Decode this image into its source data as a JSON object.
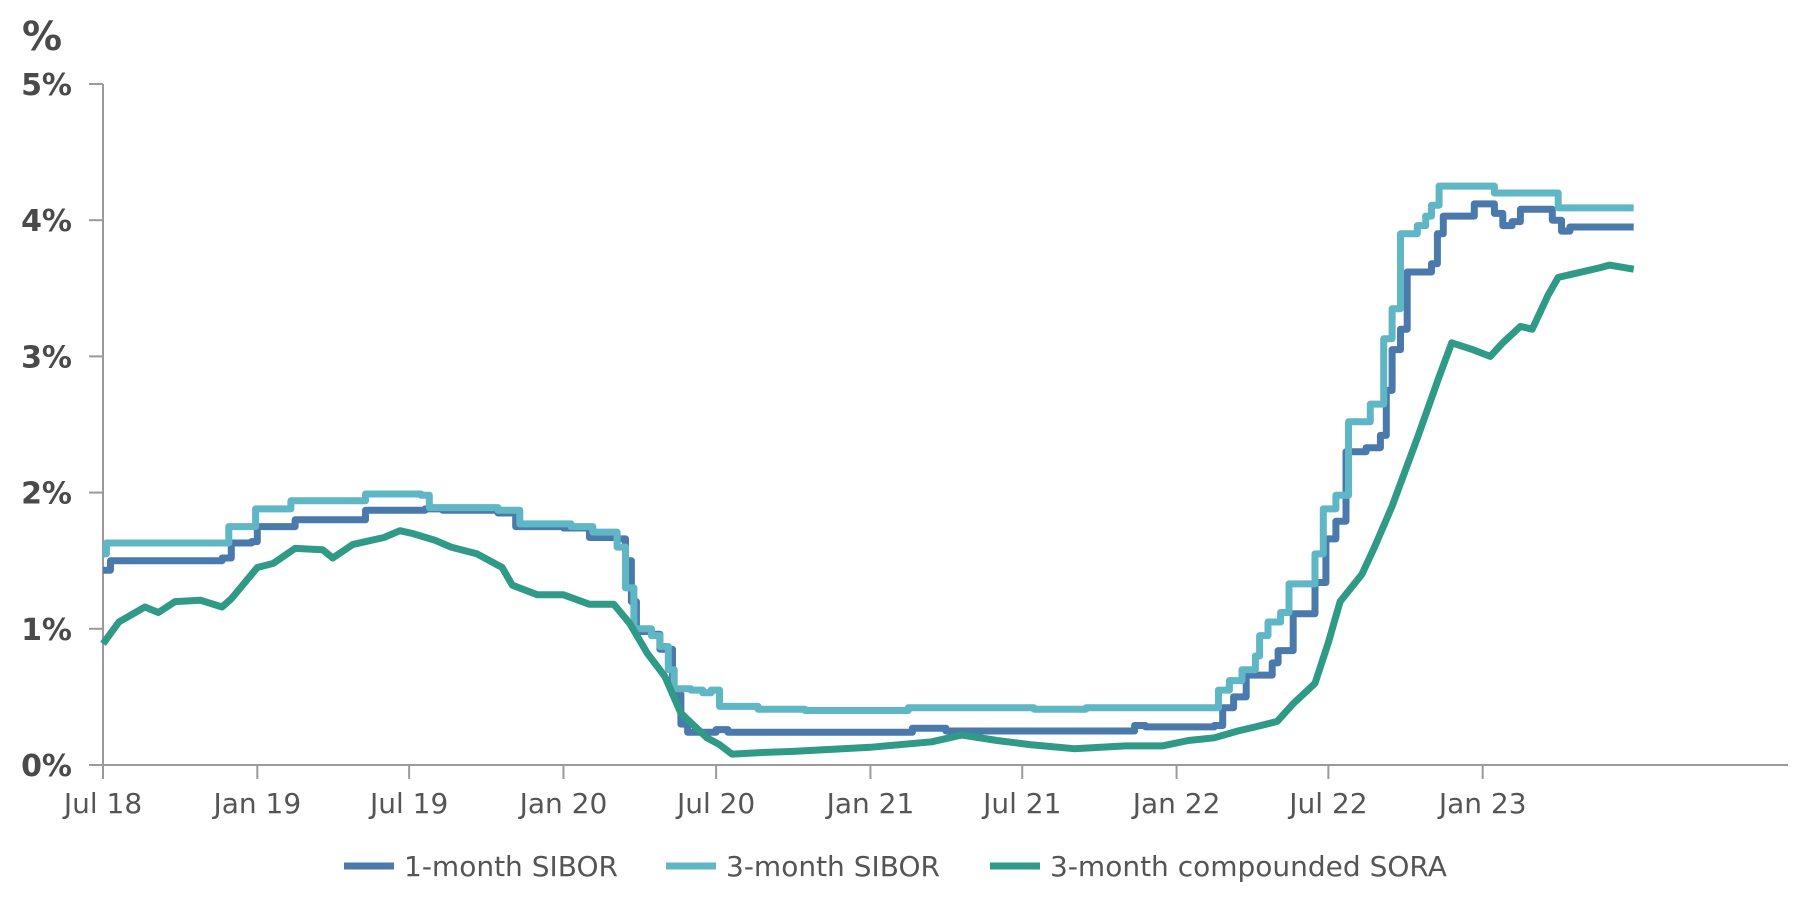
{
  "chart_data": {
    "type": "line",
    "title": "",
    "unit_label": "%",
    "xlabel": "",
    "ylabel": "",
    "ylim": [
      0,
      5
    ],
    "yticks": [
      {
        "value": 0,
        "label": "0%"
      },
      {
        "value": 1,
        "label": "1%"
      },
      {
        "value": 2,
        "label": "2%"
      },
      {
        "value": 3,
        "label": "3%"
      },
      {
        "value": 4,
        "label": "4%"
      },
      {
        "value": 5,
        "label": "5%"
      }
    ],
    "xlim": [
      "2018-07-01",
      "2023-12-31"
    ],
    "xticks": [
      {
        "date": "2018-07-01",
        "label": "Jul 18"
      },
      {
        "date": "2019-01-01",
        "label": "Jan 19"
      },
      {
        "date": "2019-07-01",
        "label": "Jul 19"
      },
      {
        "date": "2020-01-01",
        "label": "Jan 20"
      },
      {
        "date": "2020-07-01",
        "label": "Jul 20"
      },
      {
        "date": "2021-01-01",
        "label": "Jan 21"
      },
      {
        "date": "2021-07-01",
        "label": "Jul 21"
      },
      {
        "date": "2022-01-01",
        "label": "Jan 22"
      },
      {
        "date": "2022-07-01",
        "label": "Jul 22"
      },
      {
        "date": "2023-01-01",
        "label": "Jan 23"
      }
    ],
    "grid": false,
    "legend_position": "bottom",
    "series": [
      {
        "name": "1-month SIBOR",
        "color": "#4a7aac",
        "step": true,
        "points": [
          [
            "2018-07-01",
            1.43
          ],
          [
            "2018-07-10",
            1.5
          ],
          [
            "2018-11-20",
            1.52
          ],
          [
            "2018-12-01",
            1.63
          ],
          [
            "2018-12-25",
            1.64
          ],
          [
            "2019-01-01",
            1.75
          ],
          [
            "2019-02-15",
            1.8
          ],
          [
            "2019-05-10",
            1.87
          ],
          [
            "2019-07-20",
            1.88
          ],
          [
            "2019-08-10",
            1.87
          ],
          [
            "2019-10-15",
            1.85
          ],
          [
            "2019-11-05",
            1.75
          ],
          [
            "2020-01-01",
            1.74
          ],
          [
            "2020-02-01",
            1.67
          ],
          [
            "2020-03-05",
            1.66
          ],
          [
            "2020-03-15",
            1.5
          ],
          [
            "2020-03-22",
            1.2
          ],
          [
            "2020-03-28",
            0.98
          ],
          [
            "2020-04-15",
            0.96
          ],
          [
            "2020-04-25",
            0.85
          ],
          [
            "2020-05-10",
            0.52
          ],
          [
            "2020-05-20",
            0.3
          ],
          [
            "2020-05-28",
            0.24
          ],
          [
            "2020-06-20",
            0.24
          ],
          [
            "2020-07-01",
            0.26
          ],
          [
            "2020-07-15",
            0.24
          ],
          [
            "2021-02-10",
            0.24
          ],
          [
            "2021-02-20",
            0.27
          ],
          [
            "2021-04-01",
            0.25
          ],
          [
            "2021-11-05",
            0.25
          ],
          [
            "2021-11-12",
            0.29
          ],
          [
            "2021-11-25",
            0.28
          ],
          [
            "2022-02-15",
            0.29
          ],
          [
            "2022-02-25",
            0.42
          ],
          [
            "2022-03-10",
            0.5
          ],
          [
            "2022-03-25",
            0.66
          ],
          [
            "2022-04-25",
            0.75
          ],
          [
            "2022-05-02",
            0.84
          ],
          [
            "2022-05-20",
            1.11
          ],
          [
            "2022-06-15",
            1.34
          ],
          [
            "2022-06-28",
            1.66
          ],
          [
            "2022-07-10",
            1.79
          ],
          [
            "2022-07-22",
            2.3
          ],
          [
            "2022-08-15",
            2.33
          ],
          [
            "2022-09-01",
            2.42
          ],
          [
            "2022-09-08",
            2.75
          ],
          [
            "2022-09-15",
            3.05
          ],
          [
            "2022-09-25",
            3.2
          ],
          [
            "2022-10-03",
            3.62
          ],
          [
            "2022-11-01",
            3.68
          ],
          [
            "2022-11-08",
            3.9
          ],
          [
            "2022-11-15",
            4.03
          ],
          [
            "2022-12-22",
            4.12
          ],
          [
            "2023-01-15",
            4.05
          ],
          [
            "2023-01-25",
            3.96
          ],
          [
            "2023-02-05",
            3.99
          ],
          [
            "2023-02-15",
            4.08
          ],
          [
            "2023-03-25",
            4.0
          ],
          [
            "2023-04-05",
            3.92
          ],
          [
            "2023-04-15",
            3.95
          ],
          [
            "2023-06-30",
            3.95
          ]
        ]
      },
      {
        "name": "3-month SIBOR",
        "color": "#5fb6c4",
        "step": true,
        "points": [
          [
            "2018-07-01",
            1.55
          ],
          [
            "2018-07-05",
            1.63
          ],
          [
            "2018-11-20",
            1.63
          ],
          [
            "2018-11-28",
            1.75
          ],
          [
            "2018-12-30",
            1.88
          ],
          [
            "2019-02-10",
            1.94
          ],
          [
            "2019-05-10",
            1.99
          ],
          [
            "2019-07-15",
            1.98
          ],
          [
            "2019-07-25",
            1.89
          ],
          [
            "2019-10-15",
            1.87
          ],
          [
            "2019-11-10",
            1.77
          ],
          [
            "2020-01-10",
            1.75
          ],
          [
            "2020-02-05",
            1.71
          ],
          [
            "2020-03-05",
            1.6
          ],
          [
            "2020-03-15",
            1.3
          ],
          [
            "2020-03-25",
            1.0
          ],
          [
            "2020-04-15",
            0.95
          ],
          [
            "2020-04-25",
            0.87
          ],
          [
            "2020-05-05",
            0.7
          ],
          [
            "2020-05-12",
            0.56
          ],
          [
            "2020-06-01",
            0.55
          ],
          [
            "2020-06-15",
            0.53
          ],
          [
            "2020-06-25",
            0.55
          ],
          [
            "2020-07-05",
            0.43
          ],
          [
            "2020-08-20",
            0.41
          ],
          [
            "2020-10-15",
            0.4
          ],
          [
            "2021-02-15",
            0.42
          ],
          [
            "2021-06-01",
            0.42
          ],
          [
            "2021-07-15",
            0.41
          ],
          [
            "2021-09-15",
            0.42
          ],
          [
            "2022-02-15",
            0.42
          ],
          [
            "2022-02-20",
            0.55
          ],
          [
            "2022-03-05",
            0.62
          ],
          [
            "2022-03-20",
            0.7
          ],
          [
            "2022-04-05",
            0.8
          ],
          [
            "2022-04-10",
            0.95
          ],
          [
            "2022-04-20",
            1.05
          ],
          [
            "2022-05-05",
            1.12
          ],
          [
            "2022-05-15",
            1.33
          ],
          [
            "2022-06-15",
            1.55
          ],
          [
            "2022-06-25",
            1.88
          ],
          [
            "2022-07-10",
            1.98
          ],
          [
            "2022-07-25",
            2.52
          ],
          [
            "2022-08-20",
            2.65
          ],
          [
            "2022-09-05",
            3.13
          ],
          [
            "2022-09-15",
            3.35
          ],
          [
            "2022-09-25",
            3.9
          ],
          [
            "2022-10-15",
            3.96
          ],
          [
            "2022-10-25",
            4.03
          ],
          [
            "2022-11-01",
            4.11
          ],
          [
            "2022-11-10",
            4.25
          ],
          [
            "2023-01-15",
            4.2
          ],
          [
            "2023-04-01",
            4.09
          ],
          [
            "2023-06-30",
            4.09
          ]
        ]
      },
      {
        "name": "3-month compounded SORA",
        "color": "#2f9a85",
        "step": false,
        "points": [
          [
            "2018-07-01",
            0.89
          ],
          [
            "2018-07-20",
            1.05
          ],
          [
            "2018-08-20",
            1.16
          ],
          [
            "2018-09-05",
            1.12
          ],
          [
            "2018-09-25",
            1.2
          ],
          [
            "2018-10-25",
            1.21
          ],
          [
            "2018-11-20",
            1.16
          ],
          [
            "2018-12-01",
            1.22
          ],
          [
            "2019-01-01",
            1.45
          ],
          [
            "2019-01-20",
            1.48
          ],
          [
            "2019-02-15",
            1.59
          ],
          [
            "2019-03-20",
            1.58
          ],
          [
            "2019-04-01",
            1.52
          ],
          [
            "2019-04-25",
            1.62
          ],
          [
            "2019-06-01",
            1.67
          ],
          [
            "2019-06-20",
            1.72
          ],
          [
            "2019-07-05",
            1.7
          ],
          [
            "2019-08-01",
            1.65
          ],
          [
            "2019-08-20",
            1.6
          ],
          [
            "2019-09-20",
            1.55
          ],
          [
            "2019-10-20",
            1.45
          ],
          [
            "2019-11-01",
            1.32
          ],
          [
            "2019-12-01",
            1.25
          ],
          [
            "2020-01-01",
            1.25
          ],
          [
            "2020-02-01",
            1.18
          ],
          [
            "2020-03-01",
            1.18
          ],
          [
            "2020-03-20",
            1.04
          ],
          [
            "2020-04-10",
            0.82
          ],
          [
            "2020-05-01",
            0.65
          ],
          [
            "2020-05-20",
            0.38
          ],
          [
            "2020-06-20",
            0.2
          ],
          [
            "2020-07-05",
            0.15
          ],
          [
            "2020-07-20",
            0.08
          ],
          [
            "2020-08-20",
            0.09
          ],
          [
            "2020-10-01",
            0.1
          ],
          [
            "2021-01-01",
            0.13
          ],
          [
            "2021-03-15",
            0.17
          ],
          [
            "2021-04-20",
            0.22
          ],
          [
            "2021-06-01",
            0.18
          ],
          [
            "2021-07-10",
            0.15
          ],
          [
            "2021-09-01",
            0.12
          ],
          [
            "2021-11-01",
            0.14
          ],
          [
            "2021-12-15",
            0.14
          ],
          [
            "2022-01-15",
            0.18
          ],
          [
            "2022-02-15",
            0.2
          ],
          [
            "2022-03-15",
            0.25
          ],
          [
            "2022-04-05",
            0.28
          ],
          [
            "2022-05-01",
            0.32
          ],
          [
            "2022-05-20",
            0.45
          ],
          [
            "2022-06-15",
            0.6
          ],
          [
            "2022-07-01",
            0.9
          ],
          [
            "2022-07-15",
            1.2
          ],
          [
            "2022-08-10",
            1.4
          ],
          [
            "2022-08-25",
            1.6
          ],
          [
            "2022-09-15",
            1.9
          ],
          [
            "2022-10-15",
            2.4
          ],
          [
            "2022-11-10",
            2.85
          ],
          [
            "2022-11-25",
            3.1
          ],
          [
            "2022-12-20",
            3.05
          ],
          [
            "2023-01-10",
            3.0
          ],
          [
            "2023-01-25",
            3.1
          ],
          [
            "2023-02-15",
            3.22
          ],
          [
            "2023-03-01",
            3.2
          ],
          [
            "2023-03-20",
            3.45
          ],
          [
            "2023-04-01",
            3.58
          ],
          [
            "2023-04-15",
            3.6
          ],
          [
            "2023-05-20",
            3.65
          ],
          [
            "2023-06-01",
            3.67
          ],
          [
            "2023-06-30",
            3.64
          ]
        ]
      }
    ]
  }
}
